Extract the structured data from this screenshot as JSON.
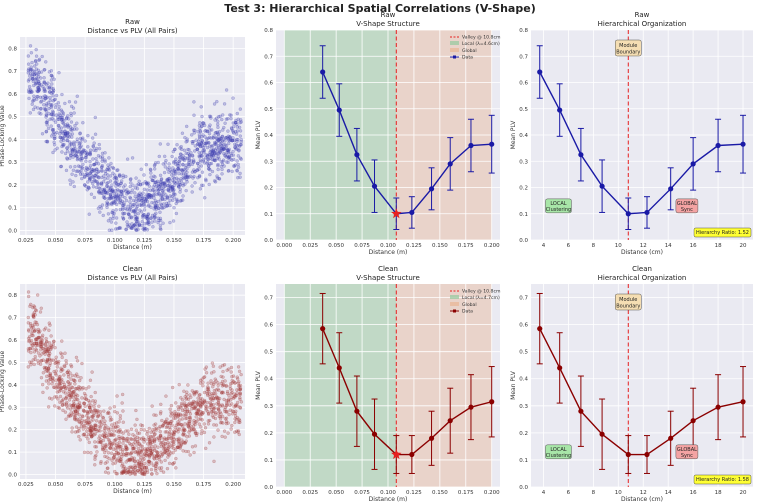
{
  "figure_title": "Test 3: Hierarchical Spatial Correlations (V-Shape)",
  "colors": {
    "raw": "#1a1aa6",
    "clean": "#8b0000",
    "raw_scatter": "#3f3fb0",
    "clean_scatter": "#a33a3a",
    "valley": "#e62020",
    "local": "#9fcaa3",
    "global": "#e8b99a",
    "panel_bg": "#eaeaf2"
  },
  "chart_data": [
    {
      "id": "raw-scatter",
      "type": "scatter",
      "title": "Raw",
      "subtitle": "Distance vs PLV (All Pairs)",
      "xlabel": "Distance (m)",
      "ylabel": "Phase-Locking Value",
      "xlim": [
        0.02,
        0.21
      ],
      "ylim": [
        -0.02,
        0.85
      ],
      "xticks": [
        "0.025",
        "0.050",
        "0.075",
        "0.100",
        "0.125",
        "0.150",
        "0.175",
        "0.200"
      ],
      "yticks": [
        "0.0",
        "0.1",
        "0.2",
        "0.3",
        "0.4",
        "0.5",
        "0.6",
        "0.7",
        "0.8"
      ],
      "grid": true,
      "trend": {
        "x": [
          0.03,
          0.05,
          0.075,
          0.1,
          0.115,
          0.13,
          0.15,
          0.175,
          0.2
        ],
        "y": [
          0.7,
          0.5,
          0.3,
          0.15,
          0.1,
          0.12,
          0.22,
          0.35,
          0.38
        ]
      },
      "point_count": 1500
    },
    {
      "id": "raw-vshape",
      "type": "line",
      "title": "Raw",
      "subtitle": "V-Shape Structure",
      "xlabel": "Distance (m)",
      "ylabel": "Mean PLV",
      "xlim": [
        -0.008,
        0.208
      ],
      "ylim": [
        0.0,
        0.8
      ],
      "xticks": [
        "0.000",
        "0.025",
        "0.050",
        "0.075",
        "0.100",
        "0.125",
        "0.150",
        "0.175",
        "0.200"
      ],
      "yticks": [
        "0.0",
        "0.1",
        "0.2",
        "0.3",
        "0.4",
        "0.5",
        "0.6",
        "0.7",
        "0.8"
      ],
      "grid": true,
      "local_region": [
        0.0,
        0.108
      ],
      "global_region": [
        0.108,
        0.2
      ],
      "valley_x": 0.108,
      "legend": [
        "Valley @ 10.8cm",
        "Local (λ=4.6cm)",
        "Global",
        "Data"
      ],
      "legend_position": "top-right",
      "series": [
        {
          "name": "Data",
          "x": [
            0.037,
            0.053,
            0.07,
            0.087,
            0.108,
            0.123,
            0.142,
            0.16,
            0.18,
            0.2
          ],
          "y": [
            0.64,
            0.495,
            0.325,
            0.205,
            0.1,
            0.105,
            0.195,
            0.29,
            0.36,
            0.365
          ],
          "err": [
            0.1,
            0.1,
            0.1,
            0.1,
            0.06,
            0.06,
            0.08,
            0.1,
            0.1,
            0.11
          ]
        }
      ]
    },
    {
      "id": "raw-hier",
      "type": "line",
      "title": "Raw",
      "subtitle": "Hierarchical Organization",
      "xlabel": "Distance (cm)",
      "ylabel": "Mean PLV",
      "xlim": [
        3.0,
        20.8
      ],
      "ylim": [
        0.0,
        0.8
      ],
      "xticks": [
        "4",
        "6",
        "8",
        "10",
        "12",
        "14",
        "16",
        "18",
        "20"
      ],
      "yticks": [
        "0.0",
        "0.1",
        "0.2",
        "0.3",
        "0.4",
        "0.5",
        "0.6",
        "0.7",
        "0.8"
      ],
      "grid": true,
      "boundary_x": 10.8,
      "boundary_label": [
        "Module",
        "Boundary"
      ],
      "local_label": [
        "LOCAL",
        "Clustering"
      ],
      "global_label": [
        "GLOBAL",
        "Sync"
      ],
      "ratio_label": "Hierarchy Ratio: 1.52",
      "series": [
        {
          "name": "Data",
          "x": [
            3.7,
            5.3,
            7.0,
            8.7,
            10.8,
            12.3,
            14.2,
            16.0,
            18.0,
            20.0
          ],
          "y": [
            0.64,
            0.495,
            0.325,
            0.205,
            0.1,
            0.105,
            0.195,
            0.29,
            0.36,
            0.365
          ],
          "err": [
            0.1,
            0.1,
            0.1,
            0.1,
            0.06,
            0.06,
            0.08,
            0.1,
            0.1,
            0.11
          ]
        }
      ]
    },
    {
      "id": "clean-scatter",
      "type": "scatter",
      "title": "Clean",
      "subtitle": "Distance vs PLV (All Pairs)",
      "xlabel": "Distance (m)",
      "ylabel": "Phase-Locking Value",
      "xlim": [
        0.02,
        0.21
      ],
      "ylim": [
        -0.02,
        0.85
      ],
      "xticks": [
        "0.025",
        "0.050",
        "0.075",
        "0.100",
        "0.125",
        "0.150",
        "0.175",
        "0.200"
      ],
      "yticks": [
        "0.0",
        "0.1",
        "0.2",
        "0.3",
        "0.4",
        "0.5",
        "0.6",
        "0.7",
        "0.8"
      ],
      "grid": true,
      "trend": {
        "x": [
          0.03,
          0.05,
          0.075,
          0.1,
          0.115,
          0.13,
          0.15,
          0.175,
          0.2
        ],
        "y": [
          0.65,
          0.45,
          0.27,
          0.13,
          0.08,
          0.1,
          0.18,
          0.3,
          0.34
        ]
      },
      "point_count": 1500
    },
    {
      "id": "clean-vshape",
      "type": "line",
      "title": "Clean",
      "subtitle": "V-Shape Structure",
      "xlabel": "Distance (m)",
      "ylabel": "Mean PLV",
      "xlim": [
        -0.008,
        0.208
      ],
      "ylim": [
        0.0,
        0.75
      ],
      "xticks": [
        "0.000",
        "0.025",
        "0.050",
        "0.075",
        "0.100",
        "0.125",
        "0.150",
        "0.175",
        "0.200"
      ],
      "yticks": [
        "0.0",
        "0.1",
        "0.2",
        "0.3",
        "0.4",
        "0.5",
        "0.6",
        "0.7"
      ],
      "grid": true,
      "local_region": [
        0.0,
        0.108
      ],
      "global_region": [
        0.108,
        0.2
      ],
      "valley_x": 0.108,
      "legend": [
        "Valley @ 10.8cm",
        "Local (λ=4.7cm)",
        "Global",
        "Data"
      ],
      "legend_position": "top-right",
      "series": [
        {
          "name": "Data",
          "x": [
            0.037,
            0.053,
            0.07,
            0.087,
            0.108,
            0.123,
            0.142,
            0.16,
            0.18,
            0.2
          ],
          "y": [
            0.585,
            0.44,
            0.28,
            0.195,
            0.12,
            0.12,
            0.18,
            0.245,
            0.295,
            0.315
          ],
          "err": [
            0.13,
            0.13,
            0.13,
            0.13,
            0.07,
            0.07,
            0.1,
            0.12,
            0.12,
            0.13
          ]
        }
      ]
    },
    {
      "id": "clean-hier",
      "type": "line",
      "title": "Clean",
      "subtitle": "Hierarchical Organization",
      "xlabel": "Distance (cm)",
      "ylabel": "Mean PLV",
      "xlim": [
        3.0,
        20.8
      ],
      "ylim": [
        0.0,
        0.75
      ],
      "xticks": [
        "4",
        "6",
        "8",
        "10",
        "12",
        "14",
        "16",
        "18",
        "20"
      ],
      "yticks": [
        "0.0",
        "0.1",
        "0.2",
        "0.3",
        "0.4",
        "0.5",
        "0.6",
        "0.7"
      ],
      "grid": true,
      "boundary_x": 10.8,
      "boundary_label": [
        "Module",
        "Boundary"
      ],
      "local_label": [
        "LOCAL",
        "Clustering"
      ],
      "global_label": [
        "GLOBAL",
        "Sync"
      ],
      "ratio_label": "Hierarchy Ratio: 1.58",
      "series": [
        {
          "name": "Data",
          "x": [
            3.7,
            5.3,
            7.0,
            8.7,
            10.8,
            12.3,
            14.2,
            16.0,
            18.0,
            20.0
          ],
          "y": [
            0.585,
            0.44,
            0.28,
            0.195,
            0.12,
            0.12,
            0.18,
            0.245,
            0.295,
            0.315
          ],
          "err": [
            0.13,
            0.13,
            0.13,
            0.13,
            0.07,
            0.07,
            0.1,
            0.12,
            0.12,
            0.13
          ]
        }
      ]
    }
  ]
}
